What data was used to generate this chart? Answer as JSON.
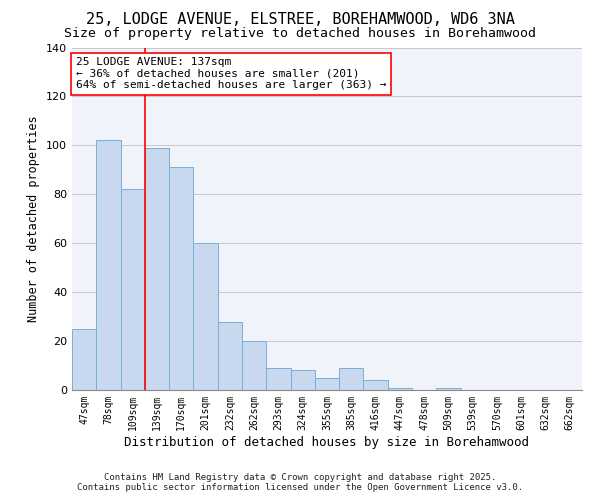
{
  "title": "25, LODGE AVENUE, ELSTREE, BOREHAMWOOD, WD6 3NA",
  "subtitle": "Size of property relative to detached houses in Borehamwood",
  "xlabel": "Distribution of detached houses by size in Borehamwood",
  "ylabel": "Number of detached properties",
  "categories": [
    "47sqm",
    "78sqm",
    "109sqm",
    "139sqm",
    "170sqm",
    "201sqm",
    "232sqm",
    "262sqm",
    "293sqm",
    "324sqm",
    "355sqm",
    "385sqm",
    "416sqm",
    "447sqm",
    "478sqm",
    "509sqm",
    "539sqm",
    "570sqm",
    "601sqm",
    "632sqm",
    "662sqm"
  ],
  "values": [
    25,
    102,
    82,
    99,
    91,
    60,
    28,
    20,
    9,
    8,
    5,
    9,
    4,
    1,
    0,
    1,
    0,
    0,
    0,
    0,
    0
  ],
  "bar_color": "#c8d9ef",
  "bar_edge_color": "#7aafd4",
  "vline_x": 3,
  "vline_color": "red",
  "annotation_line1": "25 LODGE AVENUE: 137sqm",
  "annotation_line2": "← 36% of detached houses are smaller (201)",
  "annotation_line3": "64% of semi-detached houses are larger (363) →",
  "annotation_box_color": "white",
  "annotation_box_edge_color": "red",
  "ylim": [
    0,
    140
  ],
  "yticks": [
    0,
    20,
    40,
    60,
    80,
    100,
    120,
    140
  ],
  "grid_color": "#c8c8c8",
  "background_color": "#f0f4fa",
  "footer1": "Contains HM Land Registry data © Crown copyright and database right 2025.",
  "footer2": "Contains public sector information licensed under the Open Government Licence v3.0.",
  "title_fontsize": 11,
  "subtitle_fontsize": 9.5,
  "xlabel_fontsize": 9,
  "ylabel_fontsize": 8.5,
  "annotation_fontsize": 8,
  "footer_fontsize": 6.5
}
